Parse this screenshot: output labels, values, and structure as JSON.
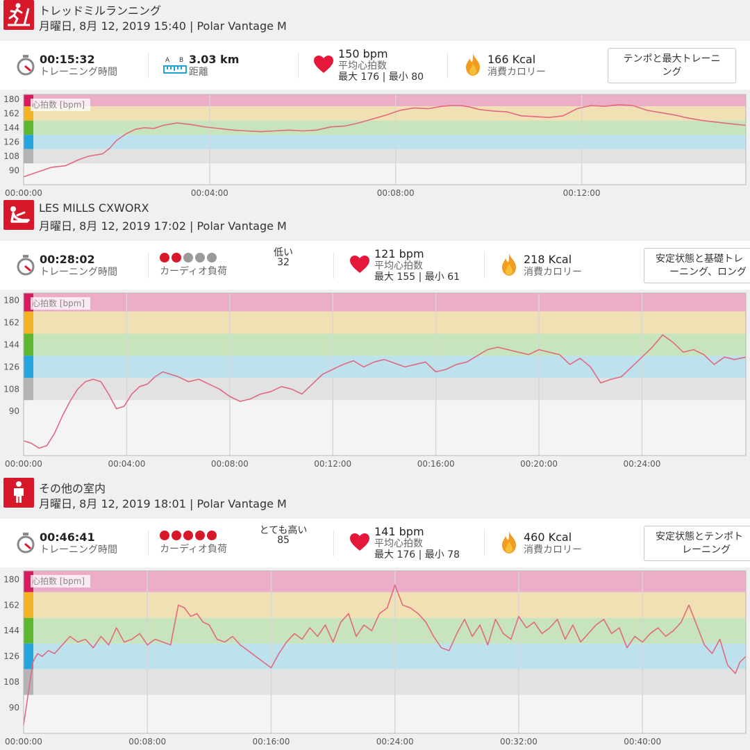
{
  "colors": {
    "brand": "#d7182a",
    "hr_line": "#e2687f",
    "zone5": "#ebadc8",
    "zone4": "#f2e0b5",
    "zone3": "#c8e4bc",
    "zone2": "#bde2ee",
    "zone1": "#e2e2e2",
    "dot_on": "#d7182a",
    "dot_off": "#9a9a9a"
  },
  "sessions": [
    {
      "sport_icon": "treadmill-running-icon",
      "sport": "トレッドミルランニング",
      "date_line": "月曜日, 8月 12, 2019 15:40 | Polar Vantage M",
      "duration": "00:15:32",
      "duration_label": "トレーニング時間",
      "metric2": {
        "kind": "distance",
        "icon": "distance-ab-icon",
        "value": "3.03 km",
        "label": "距離"
      },
      "hr_avg": "150 bpm",
      "hr_avg_label": "平均心拍数",
      "hr_minmax": "最大 176 | 最小 80",
      "kcal": "166 Kcal",
      "kcal_label": "消費カロリー",
      "type_lines": [
        "テンポと最大トレーニ",
        "ング"
      ]
    },
    {
      "sport_icon": "les-mills-cxworx-icon",
      "sport": "LES MILLS CXWORX",
      "date_line": "月曜日, 8月 12, 2019 17:02 | Polar Vantage M",
      "duration": "00:28:02",
      "duration_label": "トレーニング時間",
      "metric2": {
        "kind": "cardio",
        "dots_on": 2,
        "dots_total": 5,
        "label": "カーディオ負荷",
        "level": "低い",
        "value": "32"
      },
      "hr_avg": "121 bpm",
      "hr_avg_label": "平均心拍数",
      "hr_minmax": "最大 155 | 最小 61",
      "kcal": "218 Kcal",
      "kcal_label": "消費カロリー",
      "type_lines": [
        "安定状態と基礎トレ",
        "ーニング、ロング"
      ]
    },
    {
      "sport_icon": "other-indoor-person-icon",
      "sport": "その他の室内",
      "date_line": "月曜日, 8月 12, 2019 18:01 | Polar Vantage M",
      "duration": "00:46:41",
      "duration_label": "トレーニング時間",
      "metric2": {
        "kind": "cardio",
        "dots_on": 5,
        "dots_total": 5,
        "label": "カーディオ負荷",
        "level": "とても高い",
        "value": "85"
      },
      "hr_avg": "141 bpm",
      "hr_avg_label": "平均心拍数",
      "hr_minmax": "最大 176 | 最小 78",
      "kcal": "460 Kcal",
      "kcal_label": "消費カロリー",
      "type_lines": [
        "安定状態とテンポト",
        "レーニング"
      ]
    }
  ],
  "chart_data": [
    {
      "type": "line",
      "ylabel": "心拍数 [bpm]",
      "y_ticks": [
        180,
        162,
        144,
        126,
        108,
        90
      ],
      "ylim": [
        72,
        186
      ],
      "xlim": [
        0,
        15.53
      ],
      "x_ticks": [
        0,
        4,
        8,
        12
      ],
      "x_tick_labels": [
        "00:00:00",
        "00:04:00",
        "00:08:00",
        "00:12:00"
      ],
      "zones": [
        [
          171,
          189
        ],
        [
          153,
          171
        ],
        [
          135,
          153
        ],
        [
          117,
          135
        ],
        [
          99,
          117
        ]
      ],
      "series": [
        {
          "x": [
            0,
            0.3,
            0.6,
            0.9,
            1.2,
            1.4,
            1.7,
            1.85,
            2.0,
            2.2,
            2.4,
            2.6,
            2.8,
            3.0,
            3.3,
            3.6,
            3.9,
            4.2,
            4.5,
            4.8,
            5.1,
            5.4,
            5.7,
            6.0,
            6.3,
            6.6,
            6.9,
            7.2,
            7.5,
            7.8,
            8.1,
            8.4,
            8.7,
            9.0,
            9.2,
            9.4,
            9.6,
            9.8,
            10.1,
            10.4,
            10.7,
            11.0,
            11.3,
            11.6,
            11.9,
            12.2,
            12.5,
            12.8,
            13.1,
            13.4,
            13.7,
            14.0,
            14.3,
            14.6,
            14.9,
            15.2,
            15.53
          ],
          "y": [
            82,
            88,
            94,
            96,
            104,
            108,
            111,
            118,
            128,
            136,
            142,
            144,
            143,
            147,
            150,
            148,
            145,
            143,
            141,
            140,
            139,
            140,
            141,
            140,
            141,
            145,
            146,
            150,
            155,
            160,
            166,
            169,
            168,
            171,
            172,
            172,
            170,
            167,
            165,
            164,
            159,
            158,
            157,
            159,
            168,
            172,
            171,
            173,
            172,
            166,
            163,
            160,
            156,
            153,
            151,
            149,
            147
          ]
        }
      ]
    },
    {
      "type": "line",
      "ylabel": "心拍数 [bpm]",
      "y_ticks": [
        180,
        162,
        144,
        126,
        108,
        90
      ],
      "ylim": [
        54,
        186
      ],
      "xlim": [
        0,
        28.03
      ],
      "x_ticks": [
        0,
        4,
        8,
        12,
        16,
        20,
        24
      ],
      "x_tick_labels": [
        "00:00:00",
        "00:04:00",
        "00:08:00",
        "00:12:00",
        "00:16:00",
        "00:20:00",
        "00:24:00"
      ],
      "zones": [
        [
          171,
          189
        ],
        [
          153,
          171
        ],
        [
          135,
          153
        ],
        [
          117,
          135
        ],
        [
          99,
          117
        ]
      ],
      "series": [
        {
          "x": [
            0,
            0.3,
            0.6,
            0.9,
            1.2,
            1.5,
            1.8,
            2.1,
            2.4,
            2.7,
            3.0,
            3.3,
            3.6,
            3.9,
            4.2,
            4.5,
            4.8,
            5.1,
            5.4,
            5.7,
            6.0,
            6.4,
            6.8,
            7.2,
            7.6,
            8.0,
            8.4,
            8.8,
            9.2,
            9.6,
            10.0,
            10.4,
            10.8,
            11.2,
            11.6,
            12.0,
            12.4,
            12.8,
            13.2,
            13.6,
            14.0,
            14.4,
            14.8,
            15.2,
            15.6,
            16.0,
            16.4,
            16.8,
            17.2,
            17.6,
            18.0,
            18.4,
            18.8,
            19.2,
            19.6,
            20.0,
            20.4,
            20.8,
            21.2,
            21.6,
            22.0,
            22.4,
            22.8,
            23.2,
            23.6,
            24.0,
            24.4,
            24.8,
            25.2,
            25.6,
            26.0,
            26.4,
            26.8,
            27.2,
            27.6,
            28.03
          ],
          "y": [
            66,
            64,
            60,
            62,
            72,
            86,
            98,
            108,
            114,
            116,
            114,
            104,
            92,
            94,
            104,
            110,
            112,
            118,
            122,
            120,
            118,
            114,
            116,
            112,
            108,
            102,
            98,
            100,
            104,
            106,
            110,
            108,
            104,
            112,
            120,
            124,
            128,
            131,
            126,
            130,
            132,
            129,
            126,
            128,
            130,
            122,
            124,
            128,
            130,
            135,
            140,
            142,
            140,
            138,
            136,
            140,
            138,
            136,
            128,
            133,
            126,
            113,
            116,
            118,
            126,
            134,
            142,
            152,
            146,
            138,
            140,
            136,
            128,
            134,
            132,
            134
          ]
        }
      ]
    },
    {
      "type": "line",
      "ylabel": "心拍数 [bpm]",
      "y_ticks": [
        180,
        162,
        144,
        126,
        108,
        90
      ],
      "ylim": [
        72,
        186
      ],
      "xlim": [
        0,
        46.68
      ],
      "x_ticks": [
        0,
        8,
        16,
        24,
        32,
        40
      ],
      "x_tick_labels": [
        "00:00:00",
        "00:08:00",
        "00:16:00",
        "00:24:00",
        "00:32:00",
        "00:40:00"
      ],
      "zones": [
        [
          171,
          189
        ],
        [
          153,
          171
        ],
        [
          135,
          153
        ],
        [
          117,
          135
        ],
        [
          99,
          117
        ]
      ],
      "series": [
        {
          "x": [
            0,
            0.3,
            0.6,
            0.9,
            1.2,
            1.6,
            2.0,
            2.5,
            3.0,
            3.5,
            4.0,
            4.5,
            5.0,
            5.5,
            6.0,
            6.5,
            7.0,
            7.5,
            8.0,
            8.5,
            9.0,
            9.5,
            10.0,
            10.4,
            10.8,
            11.2,
            11.6,
            12.0,
            12.5,
            13.0,
            13.5,
            14.0,
            14.5,
            15.0,
            15.5,
            16.0,
            16.5,
            17.0,
            17.5,
            18.0,
            18.5,
            19.0,
            19.5,
            20.0,
            20.5,
            21.0,
            21.5,
            22.0,
            22.5,
            23.0,
            23.5,
            24.0,
            24.5,
            25.0,
            25.5,
            26.0,
            26.5,
            27.0,
            27.5,
            28.0,
            28.5,
            29.0,
            29.5,
            30.0,
            30.5,
            31.0,
            31.5,
            32.0,
            32.5,
            33.0,
            33.5,
            34.0,
            34.5,
            35.0,
            35.5,
            36.0,
            36.5,
            37.0,
            37.5,
            38.0,
            38.5,
            39.0,
            39.5,
            40.0,
            40.5,
            41.0,
            41.5,
            42.0,
            42.5,
            43.0,
            43.5,
            44.0,
            44.5,
            45.0,
            45.5,
            46.0,
            46.3,
            46.68
          ],
          "y": [
            78,
            100,
            122,
            128,
            126,
            130,
            128,
            134,
            140,
            136,
            138,
            132,
            140,
            134,
            146,
            136,
            138,
            142,
            134,
            138,
            136,
            134,
            162,
            160,
            154,
            156,
            150,
            148,
            138,
            136,
            140,
            134,
            130,
            126,
            122,
            118,
            128,
            136,
            142,
            138,
            146,
            140,
            148,
            136,
            150,
            156,
            140,
            148,
            144,
            156,
            160,
            176,
            162,
            160,
            156,
            150,
            140,
            132,
            130,
            142,
            152,
            140,
            148,
            134,
            152,
            142,
            138,
            154,
            146,
            150,
            142,
            146,
            152,
            138,
            148,
            136,
            142,
            148,
            152,
            142,
            146,
            132,
            140,
            136,
            142,
            146,
            140,
            144,
            150,
            162,
            148,
            134,
            128,
            138,
            120,
            114,
            122,
            126
          ]
        }
      ]
    }
  ]
}
